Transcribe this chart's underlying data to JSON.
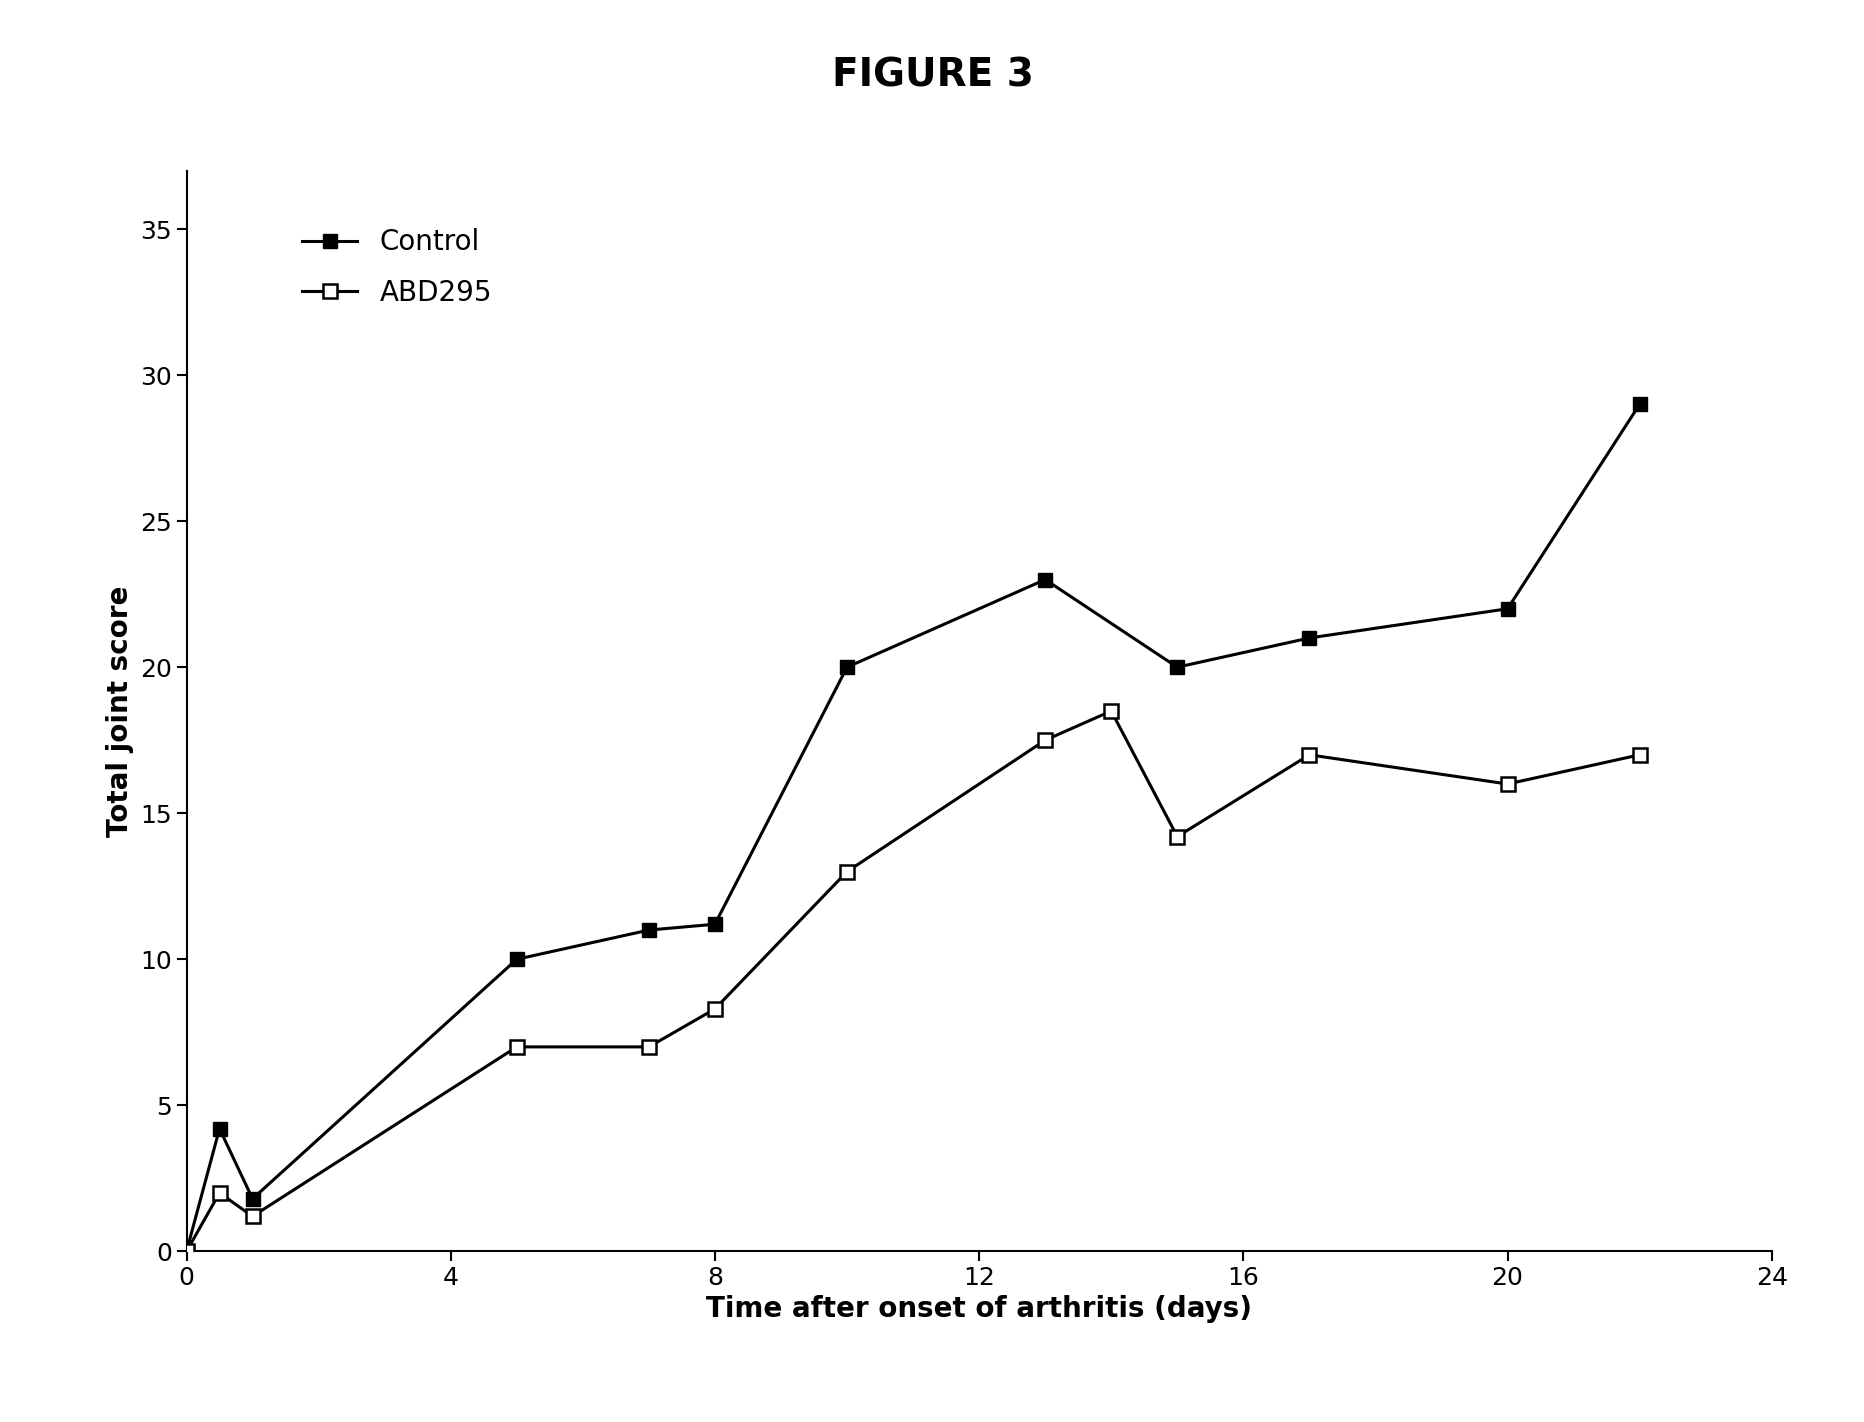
{
  "title": "FIGURE 3",
  "xlabel": "Time after onset of arthritis (days)",
  "ylabel": "Total joint score",
  "xlim": [
    0,
    24
  ],
  "ylim": [
    0,
    37
  ],
  "xticks": [
    0,
    4,
    8,
    12,
    16,
    20,
    24
  ],
  "yticks": [
    0,
    5,
    10,
    15,
    20,
    25,
    30,
    35
  ],
  "control_x": [
    0,
    0.5,
    1,
    5,
    7,
    8,
    10,
    13,
    15,
    17,
    20,
    22
  ],
  "control_y": [
    0,
    4.2,
    1.8,
    10,
    11,
    11.2,
    20.0,
    23,
    20,
    21,
    22,
    29
  ],
  "abd295_x": [
    0,
    0.5,
    1,
    5,
    7,
    8,
    10,
    13,
    14,
    15,
    17,
    20,
    22
  ],
  "abd295_y": [
    0,
    2.0,
    1.2,
    7,
    7,
    8.3,
    13,
    17.5,
    18.5,
    14.2,
    17,
    16,
    17
  ],
  "control_color": "#000000",
  "abd295_color": "#000000",
  "title_fontsize": 28,
  "label_fontsize": 20,
  "tick_fontsize": 18,
  "legend_fontsize": 20,
  "line_width": 2.2,
  "marker_size": 10,
  "background_color": "#ffffff",
  "figwidth": 18.65,
  "figheight": 14.22,
  "dpi": 100
}
